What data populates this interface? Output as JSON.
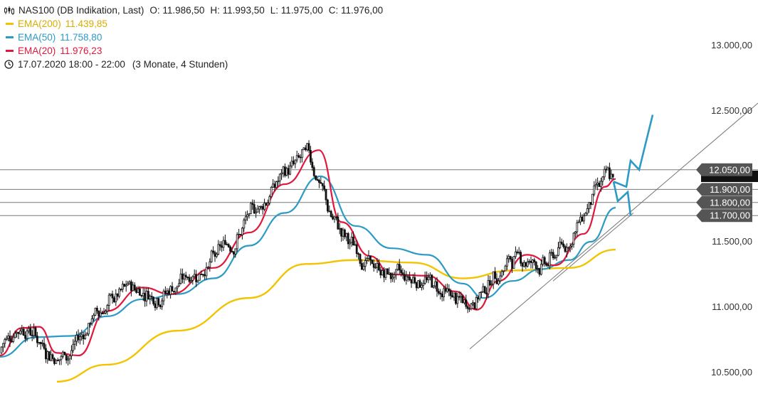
{
  "header": {
    "symbol": "NAS100 (DB Indikation, Last)",
    "open": "O: 11.986,50",
    "high": "H: 11.993,50",
    "low": "L: 11.975,00",
    "close": "C: 11.976,00",
    "timestamp": "17.07.2020 18:00 - 22:00",
    "range": "(3 Monate, 4 Stunden)"
  },
  "chart_data": {
    "type": "candlestick",
    "timeframe": "4 Stunden",
    "ylim": [
      10450,
      13250
    ],
    "yticks": [
      10500,
      11000,
      11500,
      12000,
      12500,
      13000
    ],
    "ytick_labels": [
      "10.500,00",
      "11.000,00",
      "11.500,00",
      "12.000,00",
      "12.500,00",
      "13.000,00"
    ],
    "series": [
      {
        "name": "EMA(200)",
        "label": "EMA(200)",
        "value": "11.439,85",
        "color": "#f2c400",
        "x": [
          80,
          150,
          250,
          350,
          430,
          500,
          580,
          650,
          720,
          800,
          865
        ],
        "y": [
          10430,
          10560,
          10820,
          11070,
          11330,
          11360,
          11340,
          11220,
          11280,
          11300,
          11440
        ]
      },
      {
        "name": "EMA(50)",
        "label": "EMA(50)",
        "value": "11.758,80",
        "color": "#2b9bc5",
        "x": [
          0,
          50,
          100,
          150,
          200,
          250,
          300,
          350,
          400,
          450,
          500,
          550,
          600,
          650,
          680,
          720,
          760,
          800,
          830,
          865
        ],
        "y": [
          10620,
          10770,
          10780,
          10930,
          11060,
          11100,
          11220,
          11470,
          11720,
          12000,
          11620,
          11450,
          11400,
          11180,
          11070,
          11200,
          11290,
          11360,
          11500,
          11760
        ]
      },
      {
        "name": "EMA(20)",
        "label": "EMA(20)",
        "value": "11.976,23",
        "color": "#e0183c",
        "x": [
          0,
          30,
          55,
          80,
          110,
          150,
          200,
          240,
          300,
          350,
          400,
          448,
          480,
          520,
          550,
          600,
          640,
          670,
          700,
          740,
          780,
          820,
          850,
          865
        ],
        "y": [
          10630,
          10840,
          10850,
          10650,
          10630,
          10970,
          11150,
          11100,
          11300,
          11570,
          11940,
          12200,
          11650,
          11390,
          11250,
          11240,
          11120,
          10980,
          11200,
          11400,
          11320,
          11560,
          11920,
          11980
        ]
      }
    ],
    "trendline": {
      "x1": 660,
      "y1": 10680,
      "x2": 1065,
      "y2": 12560
    },
    "levels": [
      {
        "value": 12050,
        "label": "12.050,00",
        "color": "#555555"
      },
      {
        "value": 11900,
        "label": "11.900,00",
        "color": "#555555"
      },
      {
        "value": 11800,
        "label": "11.800,00",
        "color": "#555555"
      },
      {
        "value": 11700,
        "label": "11.700,00",
        "color": "#555555"
      }
    ],
    "projection": {
      "color": "#2b9bc5",
      "bullish": {
        "x": [
          862,
          880,
          886,
          898,
          917
        ],
        "y": [
          11960,
          11920,
          12120,
          12050,
          12470
        ]
      },
      "bearish": {
        "x": [
          862,
          868,
          882,
          886
        ],
        "y": [
          11960,
          11810,
          11880,
          11700
        ]
      }
    }
  }
}
